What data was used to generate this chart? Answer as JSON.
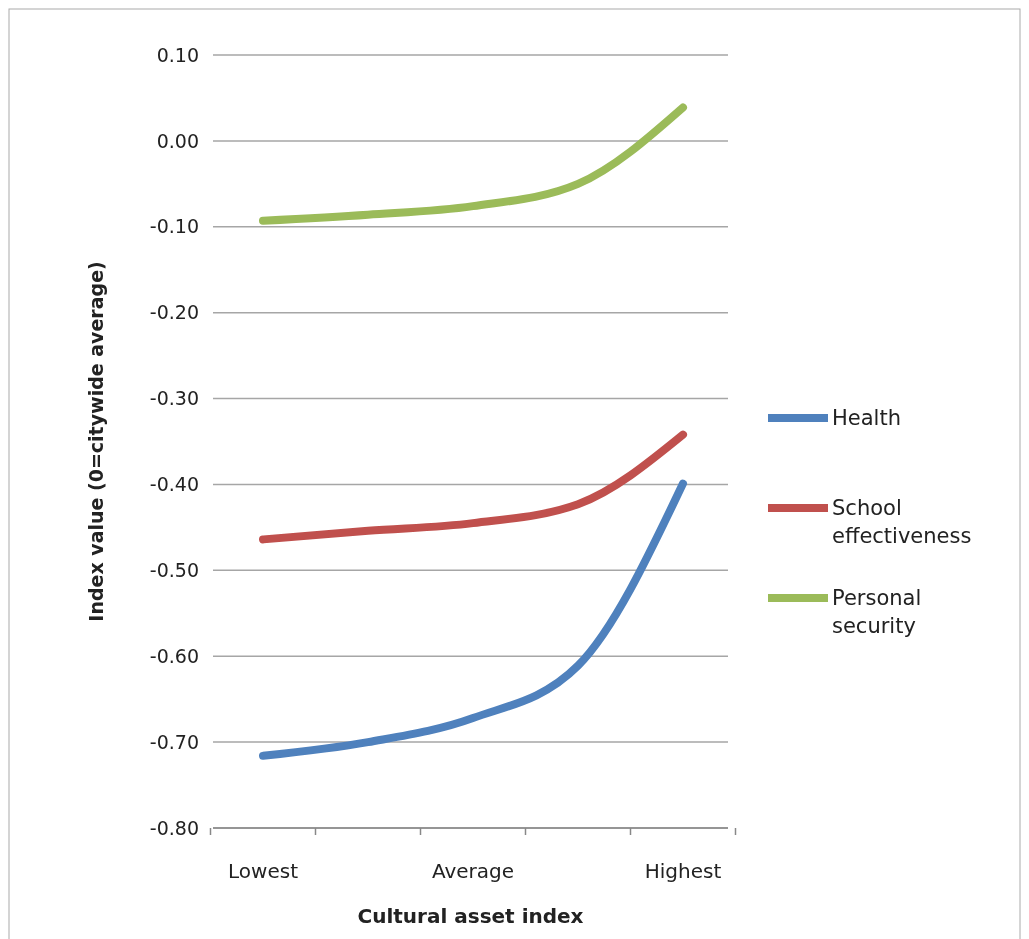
{
  "chart_data": {
    "type": "line",
    "xlabel": "Cultural asset index",
    "ylabel": "Index value (0=citywide average)",
    "categories": [
      "Lowest",
      null,
      "Average",
      null,
      "Highest"
    ],
    "series": [
      {
        "name": "Health",
        "color": "#4f81bd",
        "values": [
          -0.716,
          -0.7,
          -0.672,
          -0.611,
          -0.399
        ]
      },
      {
        "name": "School effectiveness",
        "color": "#c0504d",
        "values": [
          -0.464,
          -0.454,
          -0.445,
          -0.423,
          -0.342
        ]
      },
      {
        "name": "Personal security",
        "color": "#9bbb59",
        "values": [
          -0.093,
          -0.086,
          -0.076,
          -0.05,
          0.039
        ]
      }
    ],
    "ylim": [
      -0.8,
      0.1
    ],
    "yticks": [
      {
        "value": 0.1,
        "label": "0.10"
      },
      {
        "value": 0,
        "label": "0.00"
      },
      {
        "value": -0.1,
        "label": "-0.10"
      },
      {
        "value": -0.2,
        "label": "-0.20"
      },
      {
        "value": -0.3,
        "label": "-0.30"
      },
      {
        "value": -0.4,
        "label": "-0.40"
      },
      {
        "value": -0.5,
        "label": "-0.50"
      },
      {
        "value": -0.6,
        "label": "-0.60"
      },
      {
        "value": -0.7,
        "label": "-0.70"
      },
      {
        "value": -0.8,
        "label": "-0.80"
      }
    ],
    "grid": "y",
    "legend": "right",
    "marker": "none",
    "line_style": "solid"
  }
}
